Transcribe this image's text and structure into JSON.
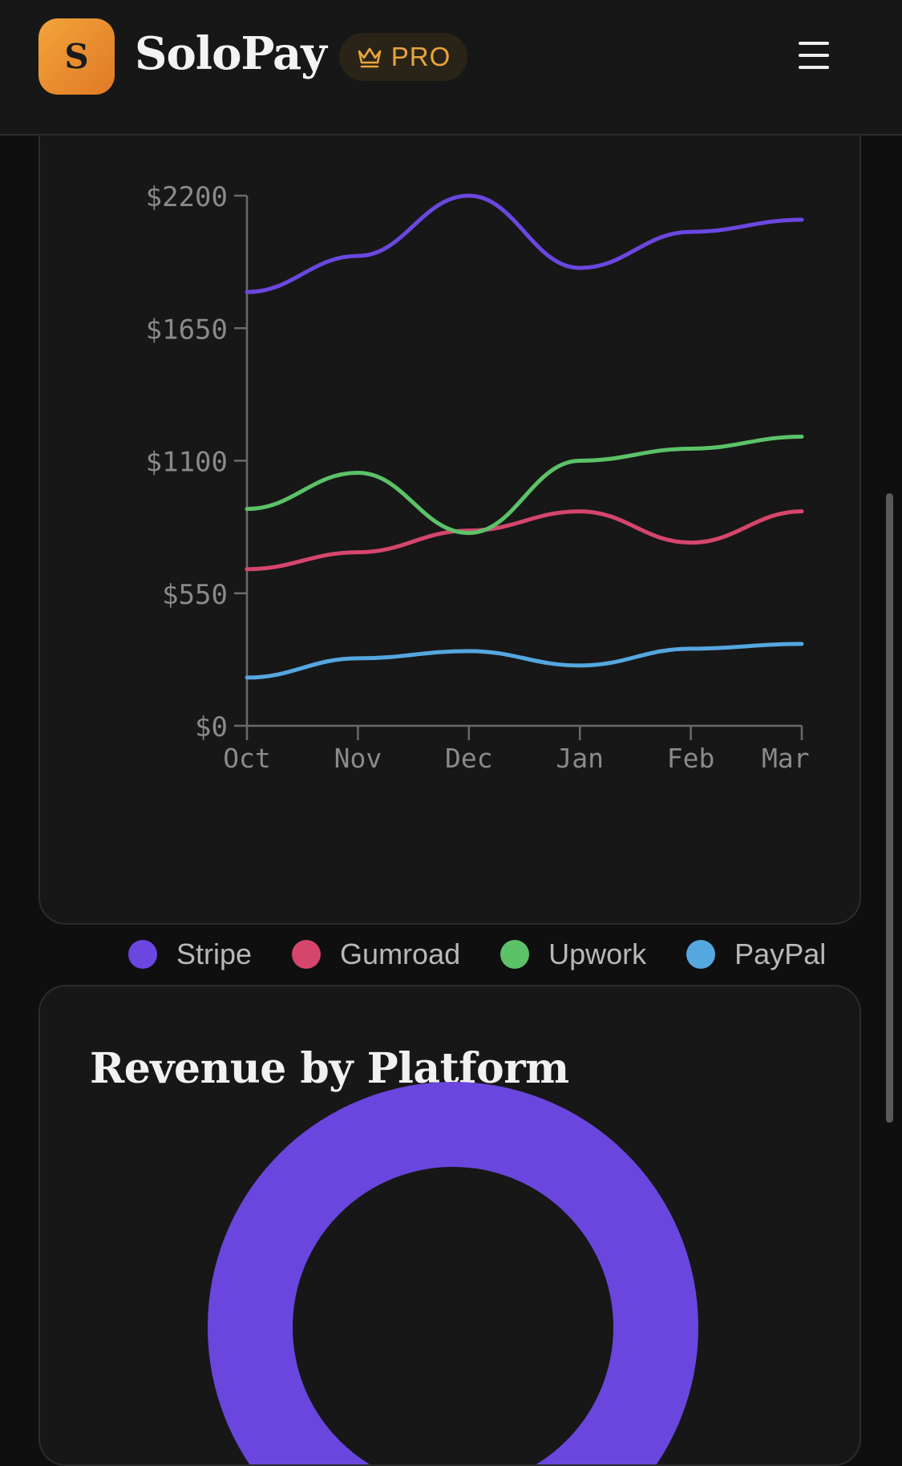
{
  "header": {
    "logo_letter": "S",
    "app_name": "SoloPay",
    "badge_label": "PRO",
    "badge_icon": "crown-icon",
    "menu_icon": "hamburger-icon"
  },
  "chart_data": {
    "type": "line",
    "categories": [
      "Oct",
      "Nov",
      "Dec",
      "Jan",
      "Feb",
      "Mar"
    ],
    "y_ticks": [
      "$0",
      "$550",
      "$1100",
      "$1650",
      "$2200"
    ],
    "ylim": [
      0,
      2200
    ],
    "series": [
      {
        "name": "Stripe",
        "color": "#6b47e0",
        "values": [
          1800,
          1950,
          2200,
          1900,
          2050,
          2100
        ]
      },
      {
        "name": "Gumroad",
        "color": "#d6466c",
        "values": [
          650,
          720,
          810,
          890,
          760,
          890
        ]
      },
      {
        "name": "Upwork",
        "color": "#5cc268",
        "values": [
          900,
          1050,
          800,
          1100,
          1150,
          1200
        ]
      },
      {
        "name": "PayPal",
        "color": "#55a7e0",
        "values": [
          200,
          280,
          310,
          250,
          320,
          340
        ]
      }
    ],
    "legend_position": "bottom",
    "grid": false
  },
  "platform_card": {
    "title": "Revenue by Platform",
    "donut_color": "#6a46de"
  }
}
